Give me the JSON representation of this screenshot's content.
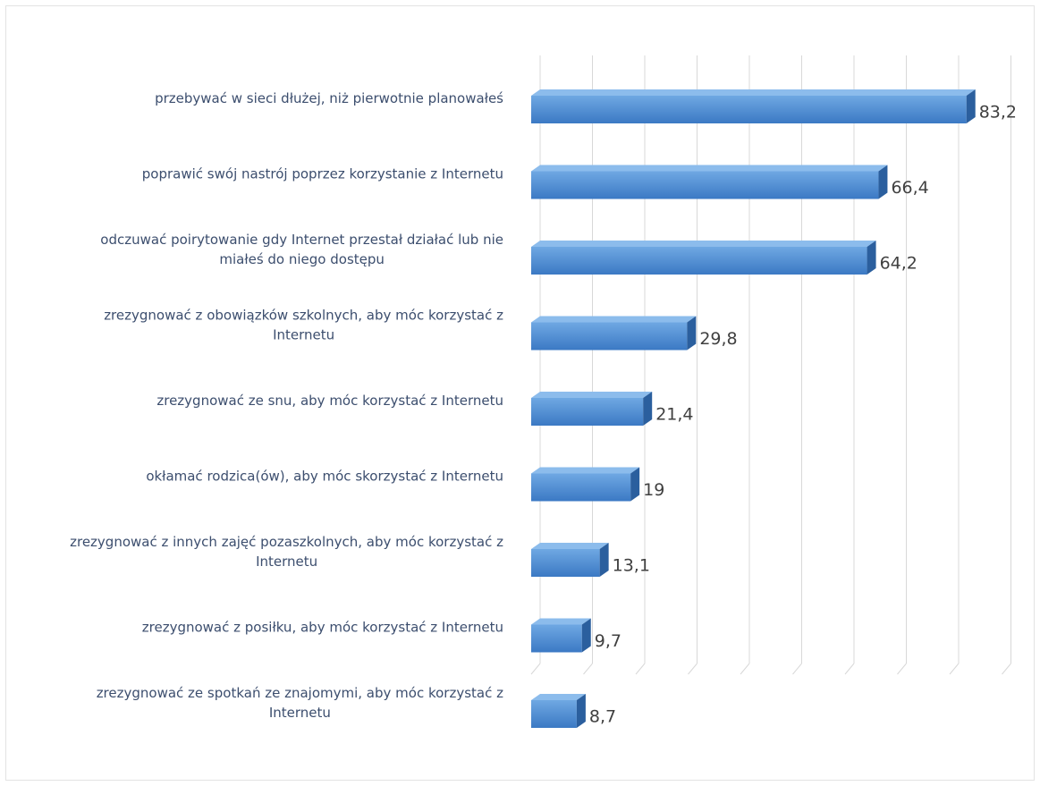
{
  "chart_data": {
    "type": "bar",
    "orientation": "horizontal",
    "style": "3d",
    "categories": [
      "przebywać w sieci dłużej, niż pierwotnie planowałeś",
      "poprawić swój nastrój poprzez korzystanie z Internetu",
      "odczuwać poirytowanie gdy Internet przestał działać lub nie miałeś do niego dostępu",
      "zrezygnować z obowiązków szkolnych, aby móc korzystać z Internetu",
      "zrezygnować ze snu, aby móc korzystać z Internetu",
      "okłamać rodzica(ów), aby móc skorzystać z Internetu",
      "zrezygnować z innych zajęć pozaszkolnych, aby móc korzystać z Internetu",
      "zrezygnować z posiłku, aby móc korzystać z Internetu",
      "zrezygnować ze spotkań ze znajomymi, aby móc korzystać z Internetu"
    ],
    "category_label_lines": [
      [
        "przebywać w sieci dłużej, niż pierwotnie planowałeś"
      ],
      [
        "poprawić swój nastrój poprzez korzystanie z Internetu"
      ],
      [
        "odczuwać poirytowanie gdy Internet przestał działać lub nie",
        "miałeś do niego dostępu"
      ],
      [
        "zrezygnować z obowiązków szkolnych, aby móc korzystać z",
        "Internetu"
      ],
      [
        "zrezygnować ze snu, aby móc korzystać z Internetu"
      ],
      [
        "okłamać rodzica(ów), aby móc skorzystać z Internetu"
      ],
      [
        "zrezygnować z innych zajęć pozaszkolnych, aby móc korzystać z",
        "Internetu"
      ],
      [
        "zrezygnować z posiłku, aby móc korzystać z Internetu"
      ],
      [
        "zrezygnować ze spotkań ze znajomymi, aby móc korzystać z",
        "Internetu"
      ]
    ],
    "values": [
      83.2,
      66.4,
      64.2,
      29.8,
      21.4,
      19,
      13.1,
      9.7,
      8.7
    ],
    "value_labels": [
      "83,2",
      "66,4",
      "64,2",
      "29,8",
      "21,4",
      "19",
      "13,1",
      "9,7",
      "8,7"
    ],
    "xlim": [
      0,
      90
    ],
    "grid": true,
    "legend": "none",
    "title": "",
    "xlabel": "",
    "ylabel": "",
    "colors": {
      "bar_front_top": "#6fa8e3",
      "bar_front_bottom": "#3b79c4",
      "bar_top": "#8cbcec",
      "bar_side": "#2b5f9e",
      "grid": "#d8d8d8",
      "category_text": "#3c4e6e",
      "value_text": "#404040"
    }
  }
}
